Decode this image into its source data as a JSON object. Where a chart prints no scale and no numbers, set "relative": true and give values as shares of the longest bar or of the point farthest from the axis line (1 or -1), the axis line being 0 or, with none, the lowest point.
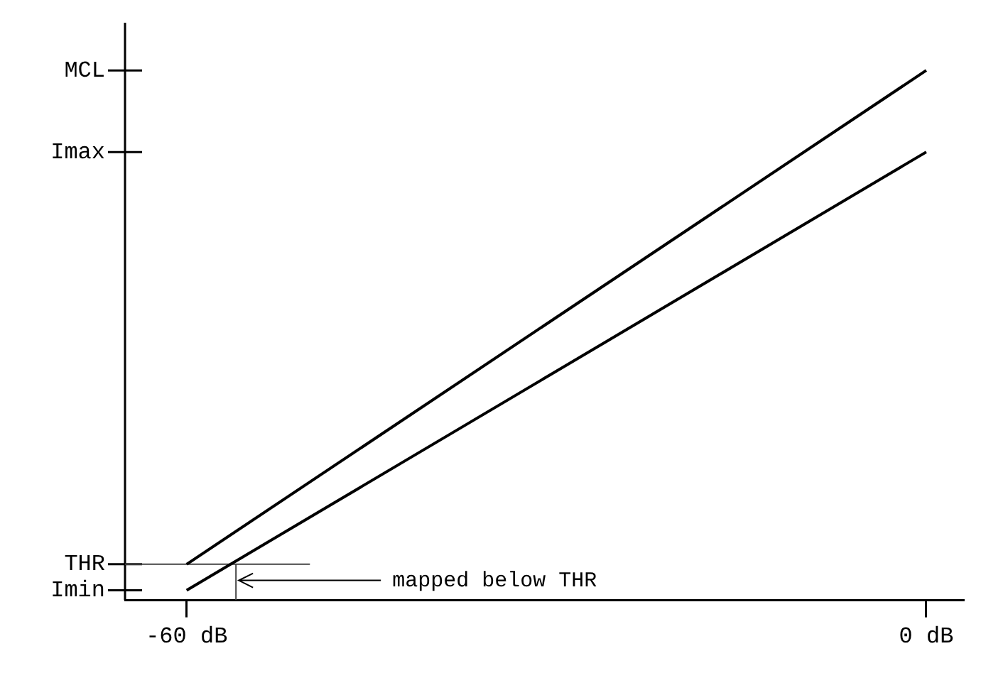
{
  "chart_data": {
    "type": "line",
    "x": [
      -60,
      0
    ],
    "series": [
      {
        "color": "#000000",
        "values": [
          0.068,
          1
        ]
      },
      {
        "color": "#000000",
        "values": [
          0.019,
          0.846
        ]
      },
      {
        "color": "#444444",
        "x": [
          -65,
          -50
        ],
        "values": [
          0.068,
          0.068
        ]
      },
      {
        "color": "#444444",
        "x": [
          -56,
          -56
        ],
        "values": [
          0,
          0.068
        ]
      }
    ],
    "relative": true,
    "xlim": [
      -65,
      3
    ],
    "xticks": [
      {
        "value": -60,
        "label": "-60 dB"
      },
      {
        "value": 0,
        "label": "0 dB"
      }
    ],
    "ref_lines": [
      {
        "axis": "y",
        "value": 1,
        "label": "MCL"
      },
      {
        "axis": "y",
        "value": 0.846,
        "label": "Imax"
      },
      {
        "axis": "y",
        "value": 0.068,
        "label": "THR"
      },
      {
        "axis": "y",
        "value": 0.019,
        "label": "Imin"
      }
    ],
    "annotations": [
      "mapped below THR"
    ],
    "grid": false,
    "legend": false,
    "marker": "none",
    "line_style": "solid"
  }
}
